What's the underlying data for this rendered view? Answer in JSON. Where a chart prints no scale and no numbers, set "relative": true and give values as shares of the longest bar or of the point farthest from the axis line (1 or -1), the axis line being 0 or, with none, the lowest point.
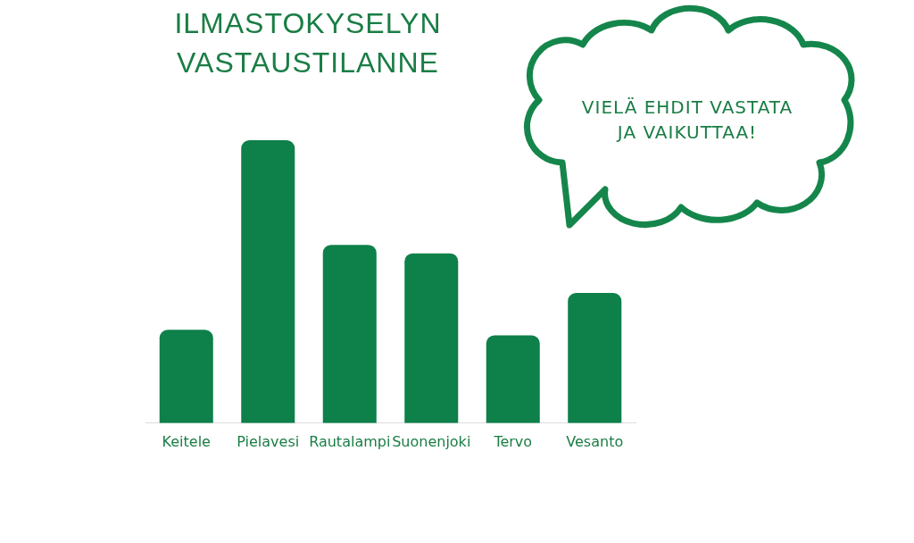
{
  "chart_data": {
    "type": "bar",
    "title": "ILMASTOKYSELYN VASTAUSTILANNE",
    "categories": [
      "Keitele",
      "Pielavesi",
      "Rautalampi",
      "Suonenjoki",
      "Tervo",
      "Vesanto"
    ],
    "values": [
      0.33,
      1,
      0.63,
      0.6,
      0.31,
      0.46
    ],
    "color": "#0e804a",
    "relative": true,
    "annotations": [
      "VIELÄ EHDIT VASTATA JA VAIKUTTAA!"
    ]
  }
}
